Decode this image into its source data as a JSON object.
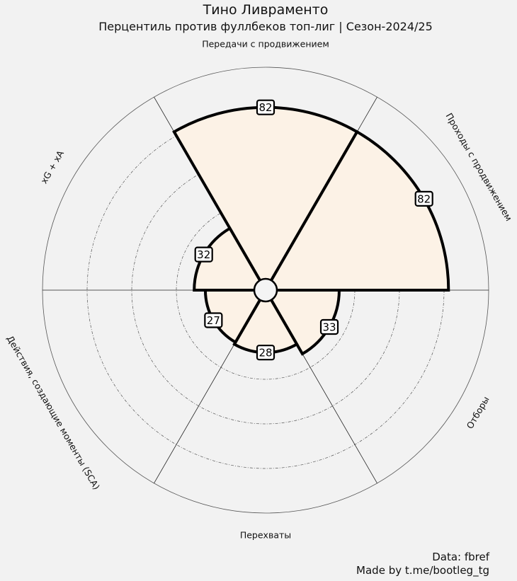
{
  "title": "Тино Ливраменто",
  "subtitle": "Перцентиль против фуллбеков топ-лиг | Сезон-2024/25",
  "credits": {
    "line1": "Data: fbref",
    "line2": "Made by t.me/bootleg_tg"
  },
  "colors": {
    "background": "#f2f2f2",
    "slice_fill": "#fcf2e6",
    "slice_edge": "#000000",
    "grid_line": "#555555"
  },
  "chart_data": {
    "type": "pizza",
    "parameters": [
      "Передачи с продвижением",
      "Проходы с продвижением",
      "Отборы",
      "Перехваты",
      "Действия, создающие моменты (SCA)",
      "xG + xA"
    ],
    "values": [
      82,
      82,
      33,
      28,
      27,
      32
    ],
    "rlim": [
      0,
      100
    ],
    "grid_rings": [
      20,
      40,
      60,
      80
    ],
    "grid_ring_style": "dashed",
    "outer_ring": 100,
    "grid": true,
    "legend": "none"
  }
}
